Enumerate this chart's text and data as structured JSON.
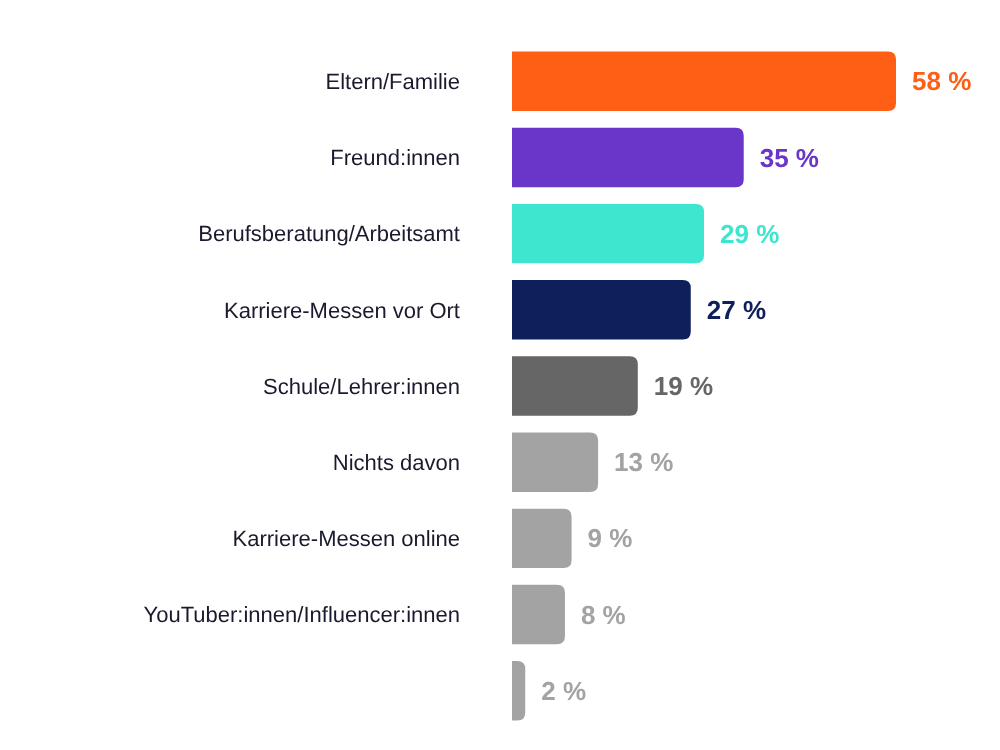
{
  "chart_data": {
    "type": "bar",
    "orientation": "horizontal",
    "categories": [
      "Eltern/Familie",
      "Freund:innen",
      "Berufsberatung/Arbeitsamt",
      "Karriere-Messen vor Ort",
      "Schule/Lehrer:innen",
      "Nichts davon",
      "Karriere-Messen online",
      "YouTuber:innen/Influencer:innen",
      null
    ],
    "values": [
      58,
      35,
      29,
      27,
      19,
      13,
      9,
      8,
      2
    ],
    "colors": [
      "#ff5f15",
      "#6a35c9",
      "#3ee6cf",
      "#0f1f5c",
      "#666666",
      "#a3a3a3",
      "#a3a3a3",
      "#a3a3a3",
      "#a3a3a3"
    ],
    "value_labels": [
      "58 %",
      "35 %",
      "29 %",
      "27 %",
      "19 %",
      "13 %",
      "9 %",
      "8 %",
      "2 %"
    ]
  }
}
